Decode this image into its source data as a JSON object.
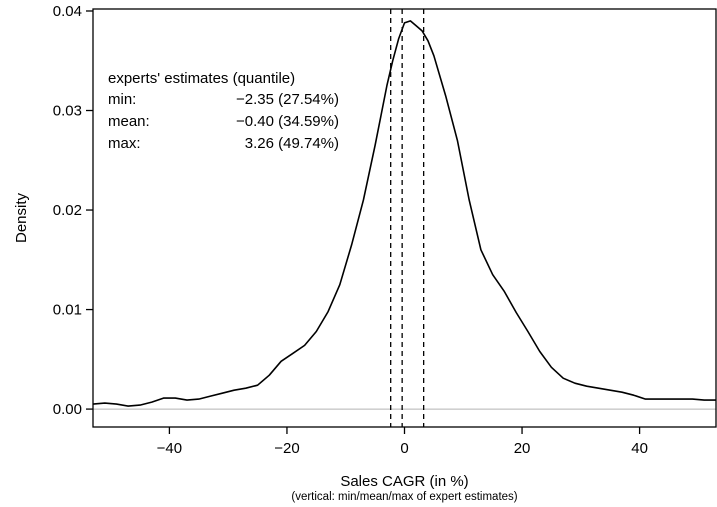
{
  "chart_data": {
    "type": "line",
    "title": "",
    "xlabel": "Sales CAGR (in %)",
    "xlabel_note": "(vertical: min/mean/max of expert estimates)",
    "ylabel": "Density",
    "xlim": [
      -53,
      53
    ],
    "ylim": [
      -0.0018,
      0.0402
    ],
    "x_ticks": [
      -40,
      -20,
      0,
      20,
      40
    ],
    "x_tick_labels": [
      "−40",
      "−20",
      "0",
      "20",
      "40"
    ],
    "y_ticks": [
      0.0,
      0.01,
      0.02,
      0.03,
      0.04
    ],
    "y_tick_labels": [
      "0.00",
      "0.01",
      "0.02",
      "0.03",
      "0.04"
    ],
    "grid": false,
    "zero_line": true,
    "colors": {
      "line": "#000000",
      "zero_line": "#b3b3b3"
    },
    "series": [
      {
        "x": [
          -53,
          -51,
          -49,
          -47,
          -45,
          -43,
          -41,
          -39,
          -37,
          -35,
          -33,
          -31,
          -29,
          -27,
          -25,
          -23,
          -21,
          -19,
          -17,
          -15,
          -13,
          -11,
          -9,
          -7,
          -5,
          -4,
          -3,
          -2,
          -1,
          0,
          1,
          2,
          3,
          4,
          5,
          7,
          9,
          11,
          13,
          15,
          17,
          19,
          21,
          23,
          25,
          27,
          29,
          31,
          33,
          35,
          37,
          39,
          41,
          43,
          45,
          47,
          49,
          51,
          53
        ],
        "y": [
          0.0005,
          0.0006,
          0.0005,
          0.0003,
          0.0004,
          0.0007,
          0.0011,
          0.0011,
          0.0009,
          0.001,
          0.0013,
          0.0016,
          0.0019,
          0.0021,
          0.0024,
          0.0034,
          0.0048,
          0.0056,
          0.0064,
          0.0078,
          0.0098,
          0.0125,
          0.0165,
          0.021,
          0.0265,
          0.0295,
          0.0325,
          0.035,
          0.0372,
          0.0388,
          0.039,
          0.0385,
          0.038,
          0.037,
          0.0355,
          0.0315,
          0.027,
          0.021,
          0.016,
          0.0135,
          0.0118,
          0.0097,
          0.0078,
          0.0058,
          0.0042,
          0.0031,
          0.0026,
          0.0023,
          0.0021,
          0.0019,
          0.0017,
          0.0014,
          0.001,
          0.001,
          0.001,
          0.001,
          0.001,
          0.0009,
          0.0009
        ]
      }
    ],
    "vertical_lines": [
      {
        "label": "min",
        "x": -2.35
      },
      {
        "label": "mean",
        "x": -0.4
      },
      {
        "label": "max",
        "x": 3.26
      }
    ],
    "annotation": {
      "title": "experts' estimates (quantile)",
      "rows": [
        {
          "label": "min:",
          "value": "−2.35 (27.54%)"
        },
        {
          "label": "mean:",
          "value": "−0.40 (34.59%)"
        },
        {
          "label": "max:",
          "value": "3.26 (49.74%)"
        }
      ]
    }
  }
}
